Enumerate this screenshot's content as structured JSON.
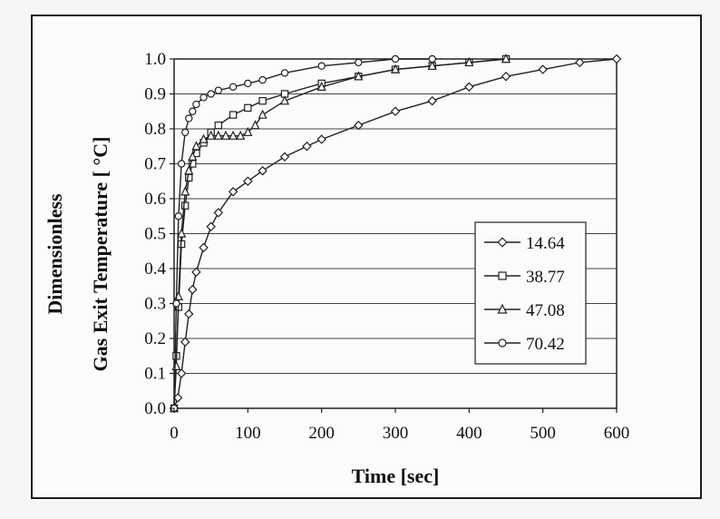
{
  "chart_data": {
    "type": "line",
    "title": "",
    "xlabel": "Time [sec]",
    "ylabel_line1": "Dimensionless",
    "ylabel_line2": "Gas Exit Temperature [ °C]",
    "xlim": [
      0,
      600
    ],
    "ylim": [
      0.0,
      1.0
    ],
    "xticks": [
      "0",
      "100",
      "200",
      "300",
      "400",
      "500",
      "600"
    ],
    "yticks": [
      "0.0",
      "0.1",
      "0.2",
      "0.3",
      "0.4",
      "0.5",
      "0.6",
      "0.7",
      "0.8",
      "0.9",
      "1.0"
    ],
    "grid": "horizontal",
    "legend_position": "right",
    "series": [
      {
        "name": "14.64",
        "marker": "diamond",
        "x": [
          0,
          5,
          10,
          15,
          20,
          25,
          30,
          40,
          50,
          60,
          80,
          100,
          120,
          150,
          180,
          200,
          250,
          300,
          350,
          400,
          450,
          500,
          550,
          600
        ],
        "y": [
          0.0,
          0.03,
          0.1,
          0.19,
          0.27,
          0.34,
          0.39,
          0.46,
          0.52,
          0.56,
          0.62,
          0.65,
          0.68,
          0.72,
          0.75,
          0.77,
          0.81,
          0.85,
          0.88,
          0.92,
          0.95,
          0.97,
          0.99,
          1.0
        ]
      },
      {
        "name": "38.77",
        "marker": "square",
        "x": [
          0,
          3,
          6,
          10,
          15,
          20,
          25,
          30,
          40,
          50,
          60,
          80,
          100,
          120,
          150,
          200,
          250,
          300,
          350,
          400,
          450
        ],
        "y": [
          0.0,
          0.15,
          0.29,
          0.47,
          0.58,
          0.66,
          0.7,
          0.73,
          0.76,
          0.79,
          0.81,
          0.84,
          0.86,
          0.88,
          0.9,
          0.93,
          0.95,
          0.97,
          0.98,
          0.99,
          1.0
        ]
      },
      {
        "name": "47.08",
        "marker": "triangle",
        "x": [
          0,
          3,
          6,
          10,
          15,
          20,
          25,
          30,
          40,
          50,
          60,
          70,
          80,
          90,
          100,
          110,
          120,
          150,
          200,
          250,
          300,
          350,
          400,
          450
        ],
        "y": [
          0.0,
          0.12,
          0.32,
          0.5,
          0.62,
          0.68,
          0.72,
          0.75,
          0.77,
          0.78,
          0.78,
          0.78,
          0.78,
          0.78,
          0.79,
          0.81,
          0.84,
          0.88,
          0.92,
          0.95,
          0.97,
          0.98,
          0.99,
          1.0
        ]
      },
      {
        "name": "70.42",
        "marker": "circle",
        "x": [
          0,
          3,
          6,
          10,
          15,
          20,
          25,
          30,
          40,
          50,
          60,
          80,
          100,
          120,
          150,
          200,
          250,
          300,
          350
        ],
        "y": [
          0.0,
          0.3,
          0.55,
          0.7,
          0.79,
          0.83,
          0.85,
          0.87,
          0.89,
          0.9,
          0.91,
          0.92,
          0.93,
          0.94,
          0.96,
          0.98,
          0.99,
          1.0,
          1.0
        ]
      }
    ]
  }
}
